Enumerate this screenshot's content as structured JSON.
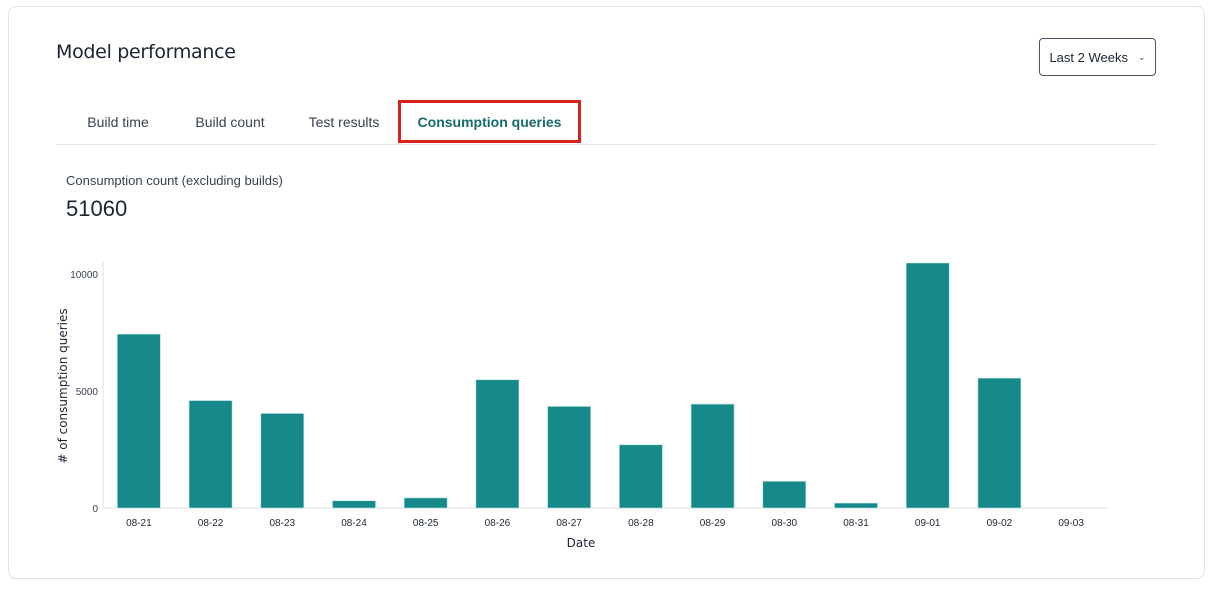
{
  "header": {
    "title": "Model performance",
    "range_select": {
      "value": "Last 2 Weeks",
      "icon": "chevron-down-icon"
    }
  },
  "tabs": [
    {
      "label": "Build time",
      "active": false
    },
    {
      "label": "Build count",
      "active": false
    },
    {
      "label": "Test results",
      "active": false
    },
    {
      "label": "Consumption queries",
      "active": true
    }
  ],
  "summary": {
    "label": "Consumption count (excluding builds)",
    "value": "51060"
  },
  "colors": {
    "bar": "#168a8a",
    "active_tab": "#176b6b",
    "highlight": "#d9211b"
  },
  "chart_data": {
    "type": "bar",
    "categories": [
      "08-21",
      "08-22",
      "08-23",
      "08-24",
      "08-25",
      "08-26",
      "08-27",
      "08-28",
      "08-29",
      "08-30",
      "08-31",
      "09-01",
      "09-02",
      "09-03"
    ],
    "values": [
      7430,
      4590,
      4040,
      310,
      430,
      5480,
      4340,
      2700,
      4440,
      1140,
      210,
      10470,
      5550,
      0
    ],
    "xlabel": "Date",
    "ylabel": "# of consumption queries",
    "ylim": [
      0,
      10470
    ],
    "yticks": [
      0,
      5000,
      10000
    ],
    "grid": false
  }
}
